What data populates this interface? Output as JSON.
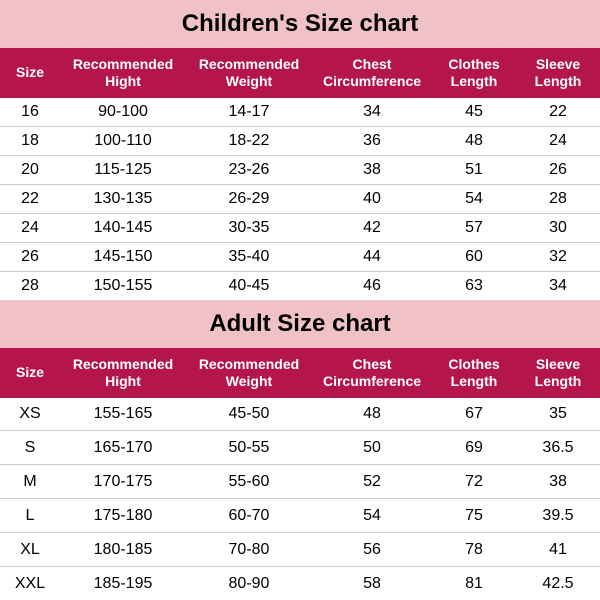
{
  "children": {
    "title": "Children's Size chart",
    "headers": [
      "Size",
      "Recommended Hight",
      "Recommended Weight",
      "Chest Circumference",
      "Clothes Length",
      "Sleeve Length"
    ],
    "rows": [
      [
        "16",
        "90-100",
        "14-17",
        "34",
        "45",
        "22"
      ],
      [
        "18",
        "100-110",
        "18-22",
        "36",
        "48",
        "24"
      ],
      [
        "20",
        "115-125",
        "23-26",
        "38",
        "51",
        "26"
      ],
      [
        "22",
        "130-135",
        "26-29",
        "40",
        "54",
        "28"
      ],
      [
        "24",
        "140-145",
        "30-35",
        "42",
        "57",
        "30"
      ],
      [
        "26",
        "145-150",
        "35-40",
        "44",
        "60",
        "32"
      ],
      [
        "28",
        "150-155",
        "40-45",
        "46",
        "63",
        "34"
      ]
    ]
  },
  "adult": {
    "title": "Adult Size chart",
    "headers": [
      "Size",
      "Recommended Hight",
      "Recommended Weight",
      "Chest Circumference",
      "Clothes Length",
      "Sleeve Length"
    ],
    "rows": [
      [
        "XS",
        "155-165",
        "45-50",
        "48",
        "67",
        "35"
      ],
      [
        "S",
        "165-170",
        "50-55",
        "50",
        "69",
        "36.5"
      ],
      [
        "M",
        "170-175",
        "55-60",
        "52",
        "72",
        "38"
      ],
      [
        "L",
        "175-180",
        "60-70",
        "54",
        "75",
        "39.5"
      ],
      [
        "XL",
        "180-185",
        "70-80",
        "56",
        "78",
        "41"
      ],
      [
        "XXL",
        "185-195",
        "80-90",
        "58",
        "81",
        "42.5"
      ]
    ]
  },
  "style": {
    "title_bg": "#f0c1c5",
    "header_bg": "#b4154b",
    "header_fg": "#ffffff",
    "row_bg": "#ffffff",
    "row_fg": "#000000",
    "title_font_size": 24,
    "header_font_size": 14,
    "cell_font_size": 16
  }
}
